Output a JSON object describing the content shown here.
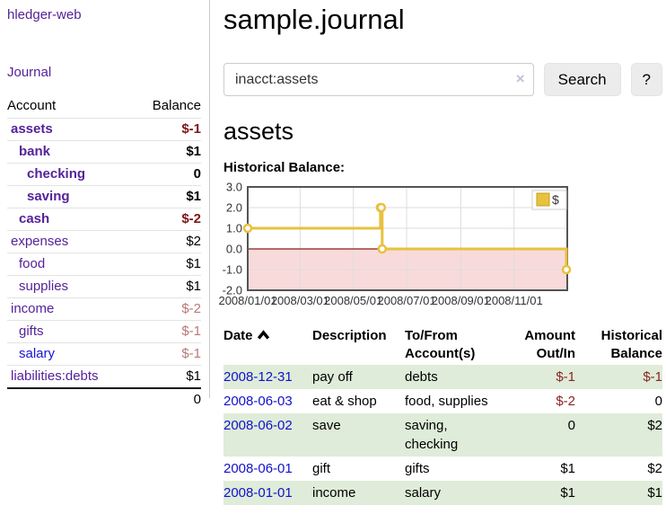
{
  "app": {
    "brand": "hledger-web",
    "nav_journal": "Journal"
  },
  "colors": {
    "link_purple": "#552299",
    "link_blue": "#1414dd",
    "negative_bold": "#7d1818",
    "negative_light": "#b87878",
    "negative_table": "#8b2323",
    "row_stripe_green": "#dfecd9",
    "series_gold": "#e8c13e"
  },
  "sidebar": {
    "col_account": "Account",
    "col_balance": "Balance",
    "accounts": [
      {
        "label": "assets",
        "depth": 1,
        "bold": true,
        "balance": "$-1"
      },
      {
        "label": "bank",
        "depth": 2,
        "bold": true,
        "balance": "$1"
      },
      {
        "label": "checking",
        "depth": 3,
        "bold": true,
        "balance": "0"
      },
      {
        "label": "saving",
        "depth": 3,
        "bold": true,
        "balance": "$1"
      },
      {
        "label": "cash",
        "depth": 2,
        "bold": true,
        "balance": "$-2"
      },
      {
        "label": "expenses",
        "depth": 1,
        "bold": false,
        "balance": "$2"
      },
      {
        "label": "food",
        "depth": 2,
        "bold": false,
        "balance": "$1"
      },
      {
        "label": "supplies",
        "depth": 2,
        "bold": false,
        "balance": "$1"
      },
      {
        "label": "income",
        "depth": 1,
        "bold": false,
        "balance": "$-2"
      },
      {
        "label": "gifts",
        "depth": 2,
        "bold": false,
        "balance": "$-1"
      },
      {
        "label": "salary",
        "depth": 2,
        "bold": false,
        "balance": "$-1",
        "blue": true
      },
      {
        "label": "liabilities:debts",
        "depth": 1,
        "bold": false,
        "balance": "$1"
      }
    ],
    "total": "0"
  },
  "main": {
    "title": "sample.journal",
    "search": {
      "value": "inacct:assets",
      "clear_icon": "×",
      "button": "Search",
      "help": "?"
    },
    "account_heading": "assets"
  },
  "chart_data": {
    "type": "line",
    "title": "Historical Balance:",
    "step": true,
    "x_range": [
      "2008/01/01",
      "2009/01/01"
    ],
    "ylim": [
      -2,
      3
    ],
    "yticks": [
      "3.0",
      "2.0",
      "1.0",
      "0.0",
      "-1.0",
      "-2.0"
    ],
    "xticks": [
      "2008/01/01",
      "2008/03/01",
      "2008/05/01",
      "2008/07/01",
      "2008/09/01",
      "2008/11/01"
    ],
    "series": [
      {
        "name": "$",
        "color": "#e8c13e",
        "marker": "circle",
        "points": [
          [
            "2008/01/01",
            1
          ],
          [
            "2008/06/01",
            2
          ],
          [
            "2008/06/02",
            2
          ],
          [
            "2008/06/03",
            0
          ],
          [
            "2008/12/31",
            -1
          ]
        ]
      }
    ],
    "legend": {
      "position": "top-right",
      "label": "$",
      "swatch_color": "#e8c13e"
    },
    "grid": true,
    "negative_area_color": "#f9dada",
    "zero_line_color": "#8b1a1a"
  },
  "register": {
    "headers": [
      {
        "line1": "Date",
        "line2": "",
        "align": "left",
        "sort": "asc"
      },
      {
        "line1": "Description",
        "line2": "",
        "align": "left"
      },
      {
        "line1": "To/From",
        "line2": "Account(s)",
        "align": "left"
      },
      {
        "line1": "Amount",
        "line2": "Out/In",
        "align": "right"
      },
      {
        "line1": "Historical",
        "line2": "Balance",
        "align": "right"
      }
    ],
    "rows": [
      {
        "date": "2008-12-31",
        "description": "pay off",
        "accounts": "debts",
        "amount": "$-1",
        "balance": "$-1"
      },
      {
        "date": "2008-06-03",
        "description": "eat & shop",
        "accounts": "food, supplies",
        "amount": "$-2",
        "balance": "0"
      },
      {
        "date": "2008-06-02",
        "description": "save",
        "accounts": "saving, checking",
        "amount": "0",
        "balance": "$2"
      },
      {
        "date": "2008-06-01",
        "description": "gift",
        "accounts": "gifts",
        "amount": "$1",
        "balance": "$2"
      },
      {
        "date": "2008-01-01",
        "description": "income",
        "accounts": "salary",
        "amount": "$1",
        "balance": "$1"
      }
    ]
  }
}
